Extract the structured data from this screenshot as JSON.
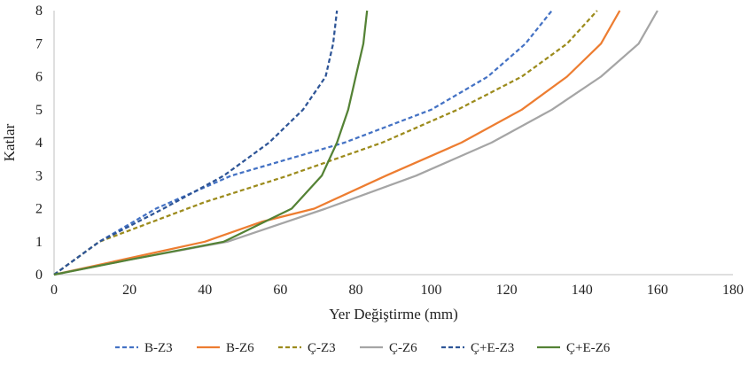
{
  "chart_data": {
    "type": "line",
    "title": "",
    "xlabel": "Yer Değiştirme (mm)",
    "ylabel": "Katlar",
    "xlim": [
      0,
      180
    ],
    "ylim": [
      0,
      8
    ],
    "x_ticks": [
      0,
      20,
      40,
      60,
      80,
      100,
      120,
      140,
      160,
      180
    ],
    "y_ticks": [
      0,
      1,
      2,
      3,
      4,
      5,
      6,
      7,
      8
    ],
    "grid": false,
    "legend_position": "bottom",
    "series": [
      {
        "name": "B-Z3",
        "color": "#4472C4",
        "dash": "dashed",
        "points": [
          [
            0,
            0
          ],
          [
            12,
            1
          ],
          [
            27,
            2
          ],
          [
            47,
            3
          ],
          [
            77,
            4
          ],
          [
            100,
            5
          ],
          [
            115,
            6
          ],
          [
            125,
            7
          ],
          [
            132,
            8
          ]
        ]
      },
      {
        "name": "B-Z6",
        "color": "#ED7D31",
        "dash": "solid",
        "points": [
          [
            0,
            0
          ],
          [
            20,
            0.5
          ],
          [
            40,
            1
          ],
          [
            55,
            1.6
          ],
          [
            69,
            2
          ],
          [
            88,
            3
          ],
          [
            108,
            4
          ],
          [
            124,
            5
          ],
          [
            136,
            6
          ],
          [
            145,
            7
          ],
          [
            150,
            8
          ]
        ]
      },
      {
        "name": "Ç-Z3",
        "color": "#9C8B1C",
        "dash": "dashed",
        "points": [
          [
            0,
            0
          ],
          [
            12,
            1
          ],
          [
            40,
            2.2
          ],
          [
            62,
            3
          ],
          [
            87,
            4
          ],
          [
            107,
            5
          ],
          [
            124,
            6
          ],
          [
            136,
            7
          ],
          [
            144,
            8
          ]
        ]
      },
      {
        "name": "Ç-Z6",
        "color": "#A5A5A5",
        "dash": "solid",
        "points": [
          [
            0,
            0
          ],
          [
            20,
            0.45
          ],
          [
            46,
            1
          ],
          [
            72,
            2
          ],
          [
            96,
            3
          ],
          [
            116,
            4
          ],
          [
            132,
            5
          ],
          [
            145,
            6
          ],
          [
            155,
            7
          ],
          [
            160,
            8
          ]
        ]
      },
      {
        "name": "Ç+E-Z3",
        "color": "#2E5597",
        "dash": "dashed",
        "points": [
          [
            0,
            0
          ],
          [
            12,
            1
          ],
          [
            29,
            2
          ],
          [
            45,
            3
          ],
          [
            57,
            4
          ],
          [
            66,
            5
          ],
          [
            72,
            6
          ],
          [
            74,
            7
          ],
          [
            75,
            8
          ]
        ]
      },
      {
        "name": "Ç+E-Z6",
        "color": "#548235",
        "dash": "solid",
        "points": [
          [
            0,
            0
          ],
          [
            20,
            0.45
          ],
          [
            45,
            1
          ],
          [
            63,
            2
          ],
          [
            71,
            3
          ],
          [
            75,
            4
          ],
          [
            78,
            5
          ],
          [
            80,
            6
          ],
          [
            82,
            7
          ],
          [
            83,
            8
          ]
        ]
      }
    ]
  }
}
